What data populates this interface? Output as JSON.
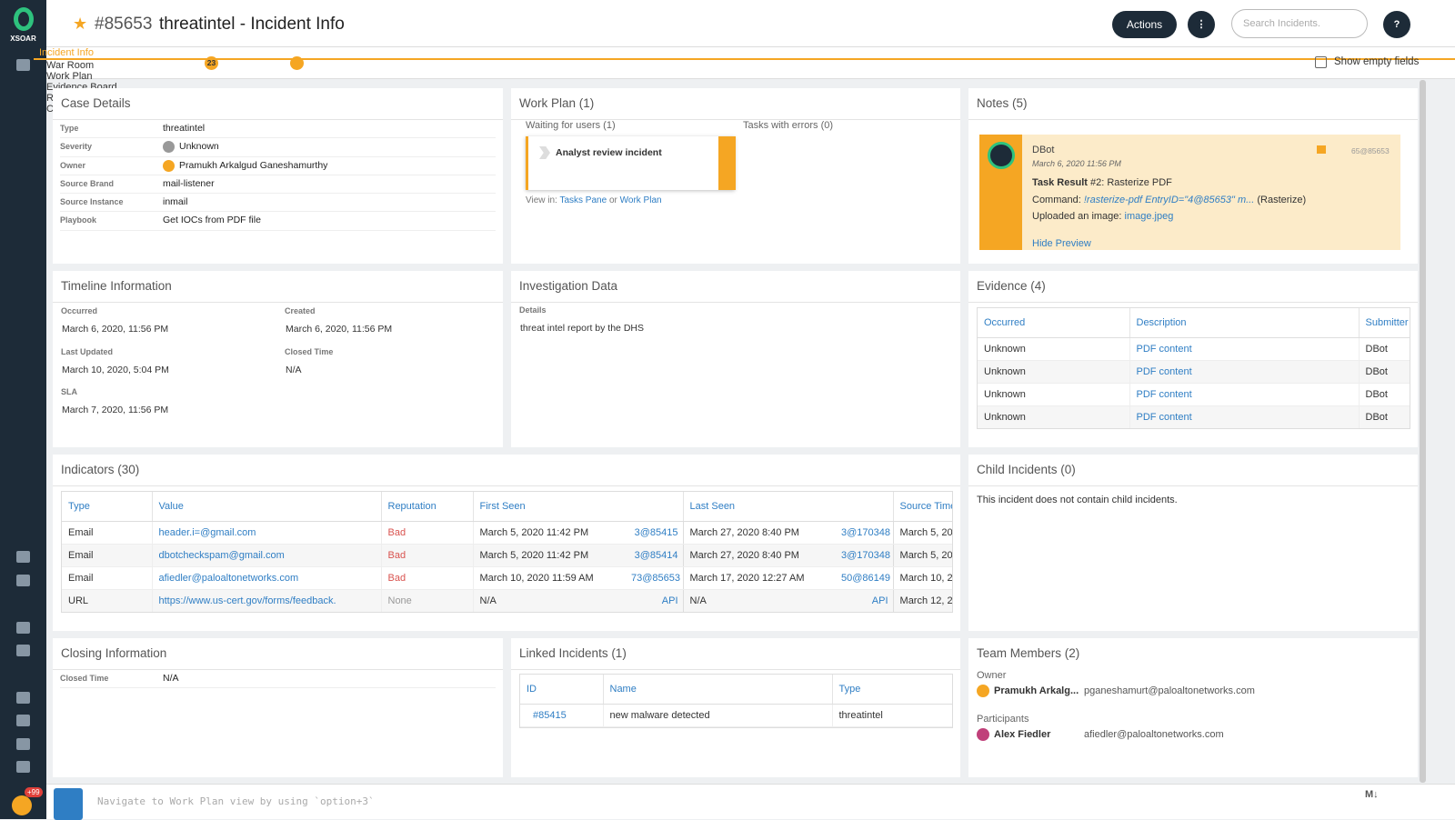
{
  "header": {
    "brand": "XSOAR",
    "incident_id": "#85653",
    "title": "threatintel - Incident Info",
    "actions": "Actions",
    "search_placeholder": "Search Incidents.",
    "help": "?"
  },
  "tabs": [
    "Incident Info",
    "War Room",
    "Work Plan",
    "Evidence Board",
    "Related Incidents",
    "Canvas"
  ],
  "war_room_badge": "23",
  "show_empty_fields": "Show empty fields",
  "case_details": {
    "title": "Case Details",
    "fields": [
      [
        "Type",
        "threatintel"
      ],
      [
        "Severity",
        "Unknown"
      ],
      [
        "Owner",
        "Pramukh Arkalgud Ganeshamurthy"
      ],
      [
        "Source Brand",
        "mail-listener"
      ],
      [
        "Source Instance",
        "inmail"
      ],
      [
        "Playbook",
        "Get IOCs from PDF file"
      ]
    ]
  },
  "work_plan": {
    "title": "Work Plan (1)",
    "waiting": "Waiting for users (1)",
    "errors": "Tasks with errors (0)",
    "task": "Analyst review incident",
    "view_in": "View in:",
    "tasks_pane": "Tasks Pane",
    "or": "or",
    "work_plan_link": "Work Plan"
  },
  "notes": {
    "title": "Notes (5)",
    "author": "DBot",
    "date": "March 6, 2020 11:56 PM",
    "ref": "65@85653",
    "task_result": "Task Result",
    "task_name": "#2: Rasterize PDF",
    "command_label": "Command:",
    "command": "!rasterize-pdf EntryID=\"4@85653\" m...",
    "command_suffix": "(Rasterize)",
    "uploaded": "Uploaded an image:",
    "image": "image.jpeg",
    "hide_preview": "Hide Preview"
  },
  "timeline": {
    "title": "Timeline Information",
    "fields": [
      [
        "Occurred",
        "March 6, 2020, 11:56 PM"
      ],
      [
        "Created",
        "March 6, 2020, 11:56 PM"
      ],
      [
        "Last Updated",
        "March 10, 2020, 5:04 PM"
      ],
      [
        "Closed Time",
        "N/A"
      ],
      [
        "SLA",
        "March 7, 2020, 11:56 PM"
      ]
    ]
  },
  "investigation": {
    "title": "Investigation Data",
    "label": "Details",
    "value": "threat intel report by the DHS"
  },
  "evidence": {
    "title": "Evidence (4)",
    "columns": [
      "Occurred",
      "Description",
      "Submitter"
    ],
    "rows": [
      [
        "Unknown",
        "PDF content",
        "DBot"
      ],
      [
        "Unknown",
        "PDF content",
        "DBot"
      ],
      [
        "Unknown",
        "PDF content",
        "DBot"
      ],
      [
        "Unknown",
        "PDF content",
        "DBot"
      ]
    ]
  },
  "indicators": {
    "title": "Indicators (30)",
    "columns": [
      "Type",
      "Value",
      "Reputation",
      "First Seen",
      "Last Seen",
      "Source Time"
    ],
    "rows": [
      [
        "Email",
        "header.i=@gmail.com",
        "Bad",
        "March 5, 2020 11:42 PM",
        "3@85415",
        "March 27, 2020 8:40 PM",
        "3@170348",
        "March 5, 20"
      ],
      [
        "Email",
        "dbotcheckspam@gmail.com",
        "Bad",
        "March 5, 2020 11:42 PM",
        "3@85414",
        "March 27, 2020 8:40 PM",
        "3@170348",
        "March 5, 20"
      ],
      [
        "Email",
        "afiedler@paloaltonetworks.com",
        "Bad",
        "March 10, 2020 11:59 AM",
        "73@85653",
        "March 17, 2020 12:27 AM",
        "50@86149",
        "March 10, 20"
      ],
      [
        "URL",
        "https://www.us-cert.gov/forms/feedback.",
        "None",
        "N/A",
        "API",
        "N/A",
        "API",
        "March 12, 20"
      ]
    ]
  },
  "child_incidents": {
    "title": "Child Incidents (0)",
    "message": "This incident does not contain child incidents."
  },
  "closing": {
    "title": "Closing Information",
    "fields": [
      [
        "Closed Time",
        "N/A"
      ]
    ]
  },
  "linked": {
    "title": "Linked Incidents (1)",
    "columns": [
      "ID",
      "Name",
      "Type"
    ],
    "rows": [
      [
        "#85415",
        "new malware detected",
        "threatintel"
      ]
    ]
  },
  "team": {
    "title": "Team Members (2)",
    "owner_label": "Owner",
    "owner_name": "Pramukh Arkalg...",
    "owner_email": "pganeshamurt@paloaltonetworks.com",
    "participants_label": "Participants",
    "participant_name": "Alex Fiedler",
    "participant_email": "afiedler@paloaltonetworks.com"
  },
  "footer": {
    "badge": "+99",
    "cli_placeholder": "Navigate to Work Plan view by using `option+3`",
    "markdown": "M↓"
  }
}
